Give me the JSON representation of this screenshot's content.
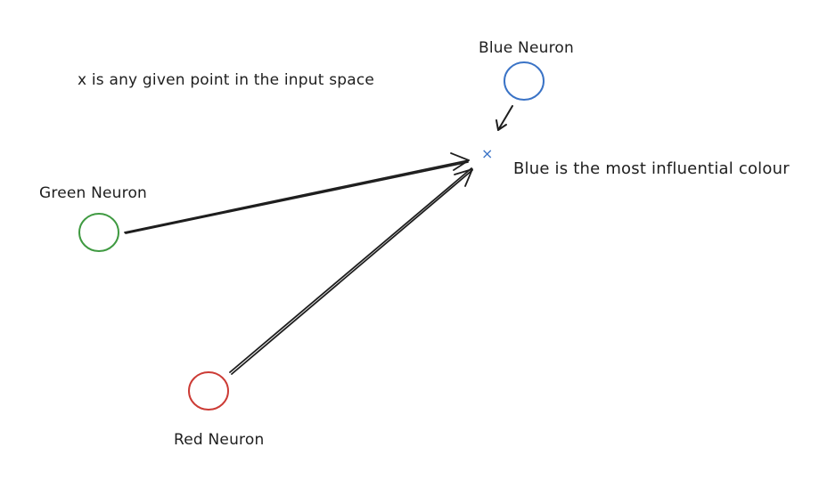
{
  "diagram": {
    "caption": "x is any given point in the input space",
    "point_marker": "×",
    "conclusion": "Blue is the most influential colour",
    "nodes": {
      "blue": {
        "label": "Blue Neuron",
        "color": "#3a73c6"
      },
      "green": {
        "label": "Green Neuron",
        "color": "#3f9a41"
      },
      "red": {
        "label": "Red Neuron",
        "color": "#cc3b35"
      }
    },
    "edges": [
      {
        "from": "Blue Neuron",
        "to": "x"
      },
      {
        "from": "Green Neuron",
        "to": "x"
      },
      {
        "from": "Red Neuron",
        "to": "x"
      }
    ],
    "stroke_color": "#1e1e1e"
  }
}
